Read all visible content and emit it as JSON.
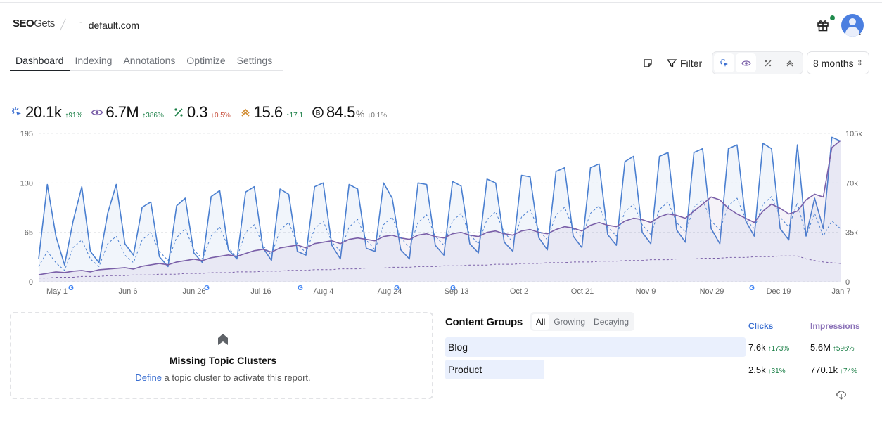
{
  "header": {
    "logo": {
      "strong": "SEO",
      "rest": "Gets"
    },
    "site_glyph": "⌝",
    "site": "default.com"
  },
  "tabs": [
    {
      "label": "Dashboard",
      "active": true
    },
    {
      "label": "Indexing"
    },
    {
      "label": "Annotations"
    },
    {
      "label": "Optimize"
    },
    {
      "label": "Settings"
    }
  ],
  "toolbar": {
    "filter_label": "Filter",
    "date_range": "8 months",
    "caret": "⇕"
  },
  "kpis": [
    {
      "icon": "clicks-icon",
      "value": "20.1k",
      "suffix": "",
      "change": "↑91%",
      "dir": "up",
      "color": "#3b6fd1"
    },
    {
      "icon": "eye-icon",
      "value": "6.7M",
      "suffix": "",
      "change": "↑386%",
      "dir": "up",
      "color": "#7a5fa8"
    },
    {
      "icon": "ctr-icon",
      "value": "0.3",
      "suffix": "",
      "change": "↓0.5%",
      "dir": "down",
      "color": "#1a7f46"
    },
    {
      "icon": "position-icon",
      "value": "15.6",
      "suffix": "",
      "change": "↑17.1",
      "dir": "up",
      "color": "#d08a2e"
    },
    {
      "icon": "bot-icon",
      "value": "84.5",
      "suffix": "%",
      "change": "↓0.1%",
      "dir": "neutral",
      "color": "#111111"
    }
  ],
  "chart_data": {
    "type": "line",
    "x_ticks": [
      "May 1",
      "Jun 6",
      "Jun 26",
      "Jul 16",
      "Aug 4",
      "Aug 24",
      "Sep 13",
      "Oct 2",
      "Oct 21",
      "Nov 9",
      "Nov 29",
      "Dec 19",
      "Jan 7"
    ],
    "y_left": {
      "ticks": [
        "0",
        "65",
        "130",
        "195"
      ],
      "range": [
        0,
        195
      ]
    },
    "y_right": {
      "ticks": [
        "0",
        "35k",
        "70k",
        "105k"
      ],
      "range": [
        0,
        105000
      ]
    },
    "annotation_marker": "google-update-icon",
    "series": [
      {
        "name": "Clicks",
        "axis": "left",
        "color": "#4a7fd0",
        "values": [
          30,
          128,
          60,
          22,
          80,
          125,
          40,
          25,
          90,
          128,
          50,
          35,
          98,
          105,
          33,
          20,
          100,
          110,
          38,
          25,
          112,
          120,
          42,
          30,
          118,
          125,
          45,
          28,
          122,
          115,
          40,
          35,
          125,
          130,
          48,
          30,
          128,
          122,
          44,
          40,
          130,
          110,
          42,
          30,
          130,
          128,
          48,
          35,
          132,
          126,
          50,
          38,
          135,
          130,
          52,
          40,
          140,
          138,
          58,
          42,
          145,
          150,
          60,
          45,
          150,
          155,
          62,
          48,
          158,
          165,
          65,
          50,
          165,
          170,
          68,
          52,
          170,
          175,
          70,
          50,
          175,
          180,
          80,
          60,
          182,
          175,
          70,
          55,
          180,
          60,
          110,
          70,
          190,
          185
        ]
      },
      {
        "name": "Impressions",
        "axis": "right",
        "color": "#7a5fa8",
        "values": [
          5000,
          6000,
          7000,
          6500,
          7500,
          8000,
          7000,
          8500,
          9000,
          9500,
          10000,
          9000,
          11000,
          12000,
          13000,
          12000,
          14000,
          15000,
          16000,
          15000,
          17000,
          18000,
          19000,
          18000,
          20000,
          22000,
          23000,
          21000,
          24000,
          25000,
          26000,
          24000,
          27000,
          28000,
          29000,
          27000,
          30000,
          31000,
          30000,
          29000,
          32000,
          33000,
          31000,
          30000,
          33000,
          34000,
          32000,
          31000,
          34000,
          35000,
          33000,
          32000,
          35000,
          36000,
          34000,
          33000,
          36000,
          37000,
          35000,
          34000,
          37000,
          39000,
          38000,
          36000,
          40000,
          42000,
          40000,
          39000,
          43000,
          45000,
          44000,
          42000,
          46000,
          48000,
          47000,
          45000,
          50000,
          55000,
          60000,
          58000,
          52000,
          48000,
          45000,
          42000,
          50000,
          55000,
          52000,
          48000,
          50000,
          58000,
          62000,
          60000,
          95000,
          100000
        ]
      },
      {
        "name": "Position",
        "axis": "left",
        "color": "#4a7fd0",
        "dashed": true,
        "values": [
          20,
          40,
          25,
          15,
          45,
          55,
          30,
          20,
          50,
          60,
          35,
          25,
          55,
          65,
          40,
          28,
          58,
          70,
          42,
          30,
          60,
          72,
          45,
          32,
          65,
          75,
          48,
          35,
          68,
          78,
          50,
          38,
          70,
          80,
          52,
          40,
          72,
          82,
          55,
          42,
          75,
          85,
          58,
          45,
          78,
          88,
          60,
          48,
          80,
          90,
          62,
          50,
          82,
          92,
          65,
          52,
          85,
          95,
          68,
          55,
          88,
          98,
          70,
          58,
          90,
          100,
          72,
          60,
          92,
          102,
          75,
          62,
          95,
          105,
          78,
          65,
          98,
          108,
          80,
          68,
          100,
          110,
          82,
          70,
          102,
          112,
          85,
          72,
          104,
          60,
          90,
          60,
          80,
          70
        ]
      },
      {
        "name": "CTR",
        "axis": "left",
        "color": "#7a5fa8",
        "dashed": true,
        "values": [
          5,
          5,
          6,
          6,
          6,
          7,
          7,
          7,
          8,
          8,
          8,
          9,
          9,
          9,
          10,
          10,
          10,
          11,
          11,
          11,
          12,
          12,
          12,
          13,
          13,
          13,
          14,
          14,
          14,
          15,
          15,
          15,
          16,
          16,
          16,
          17,
          17,
          17,
          18,
          18,
          18,
          19,
          19,
          19,
          20,
          20,
          20,
          21,
          21,
          21,
          22,
          22,
          22,
          23,
          23,
          23,
          24,
          24,
          24,
          25,
          25,
          25,
          26,
          26,
          26,
          27,
          27,
          27,
          28,
          28,
          28,
          29,
          29,
          29,
          30,
          30,
          30,
          31,
          31,
          31,
          32,
          32,
          32,
          33,
          33,
          33,
          34,
          34,
          34,
          30,
          28,
          26,
          25,
          24
        ]
      }
    ]
  },
  "topic_clusters": {
    "title": "Missing Topic Clusters",
    "link": "Define",
    "text": " a topic cluster to activate this report."
  },
  "content_groups": {
    "title": "Content Groups",
    "filters": [
      {
        "label": "All",
        "active": true
      },
      {
        "label": "Growing"
      },
      {
        "label": "Decaying"
      }
    ],
    "col_clicks": "Clicks",
    "col_impressions": "Impressions",
    "rows": [
      {
        "name": "Blog",
        "share": 1.0,
        "clicks": "7.6k",
        "clicks_change": "↑173%",
        "impressions": "5.6M",
        "impressions_change": "↑596%"
      },
      {
        "name": "Product",
        "share": 0.33,
        "clicks": "2.5k",
        "clicks_change": "↑31%",
        "impressions": "770.1k",
        "impressions_change": "↑74%"
      }
    ]
  }
}
